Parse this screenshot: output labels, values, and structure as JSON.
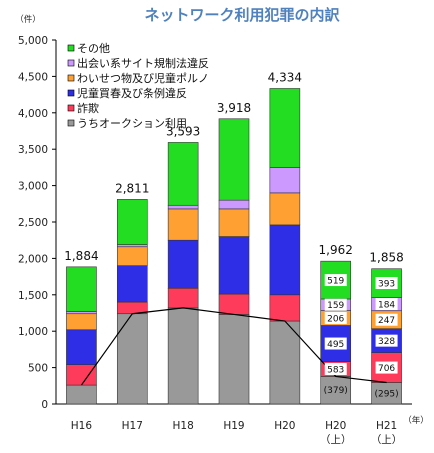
{
  "chart_data": {
    "type": "bar",
    "title": "ネットワーク利用犯罪の内訳",
    "ylabel": "（件）",
    "xlabel": "（年）",
    "ylim": [
      0,
      5000
    ],
    "y_ticks": [
      "0",
      "500",
      "1,000",
      "1,500",
      "2,000",
      "2,500",
      "3,000",
      "3,500",
      "4,000",
      "4,500",
      "5,000"
    ],
    "categories": [
      {
        "line1": "H16",
        "line2": ""
      },
      {
        "line1": "H17",
        "line2": ""
      },
      {
        "line1": "H18",
        "line2": ""
      },
      {
        "line1": "H19",
        "line2": ""
      },
      {
        "line1": "H20",
        "line2": ""
      },
      {
        "line1": "H20",
        "line2": "（上）"
      },
      {
        "line1": "H21",
        "line2": "（上）"
      }
    ],
    "totals": [
      "1,884",
      "2,811",
      "3,593",
      "3,918",
      "4,334",
      "1,962",
      "1,858"
    ],
    "series": [
      {
        "name": "うちオークション利用",
        "color": "#999999",
        "values": [
          260,
          1240,
          1320,
          1230,
          1140,
          379,
          295
        ],
        "labels": [
          "",
          "",
          "",
          "",
          "",
          "",
          ""
        ],
        "below_labels": [
          "",
          "",
          "",
          "",
          "",
          "(379)",
          "(295)"
        ]
      },
      {
        "name": "詐欺",
        "color": "#ff3b5c",
        "values": [
          280,
          160,
          270,
          280,
          360,
          204,
          411
        ],
        "labels": [
          "",
          "",
          "",
          "",
          "",
          "583",
          "706"
        ]
      },
      {
        "name": "児童買春及び条例違反",
        "color": "#2e2ee6",
        "values": [
          480,
          500,
          660,
          790,
          960,
          495,
          328
        ],
        "labels": [
          "",
          "",
          "",
          "",
          "",
          "495",
          "328"
        ]
      },
      {
        "name": "わいせつ物及び児童ポルノ",
        "color": "#ffa033",
        "values": [
          220,
          260,
          430,
          380,
          440,
          206,
          247
        ],
        "labels": [
          "",
          "",
          "",
          "",
          "",
          "206",
          "247"
        ]
      },
      {
        "name": "出会い系サイト規制法違反",
        "color": "#cc99ff",
        "values": [
          30,
          30,
          50,
          120,
          350,
          159,
          184
        ],
        "labels": [
          "",
          "",
          "",
          "",
          "",
          "159",
          "184"
        ]
      },
      {
        "name": "その他",
        "color": "#22dd22",
        "values": [
          614,
          621,
          863,
          1118,
          1084,
          519,
          393
        ],
        "labels": [
          "",
          "",
          "",
          "",
          "",
          "519",
          "393"
        ]
      }
    ],
    "line_series": {
      "name": "うちオークション利用",
      "values": [
        260,
        1240,
        1320,
        1230,
        1140,
        379,
        295
      ]
    },
    "legend": [
      "その他",
      "出会い系サイト規制法違反",
      "わいせつ物及び児童ポルノ",
      "児童買春及び条例違反",
      "詐欺",
      "うちオークション利用"
    ],
    "legend_position": "top-left",
    "grid": false
  }
}
